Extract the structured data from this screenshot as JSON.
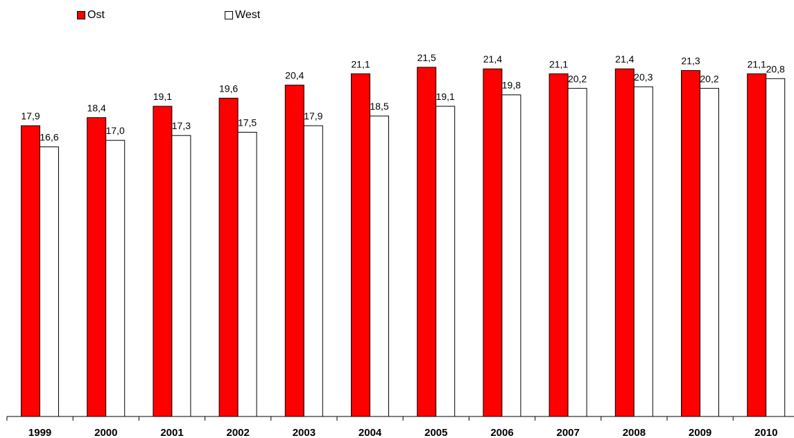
{
  "chart_data": {
    "type": "bar",
    "categories": [
      "1999",
      "2000",
      "2001",
      "2002",
      "2003",
      "2004",
      "2005",
      "2006",
      "2007",
      "2008",
      "2009",
      "2010"
    ],
    "series": [
      {
        "name": "Ost",
        "color": "#ff0000",
        "values": [
          17.9,
          18.4,
          19.1,
          19.6,
          20.4,
          21.1,
          21.5,
          21.4,
          21.1,
          21.4,
          21.3,
          21.1
        ],
        "labels": [
          "17,9",
          "18,4",
          "19,1",
          "19,6",
          "20,4",
          "21,1",
          "21,5",
          "21,4",
          "21,1",
          "21,4",
          "21,3",
          "21,1"
        ]
      },
      {
        "name": "West",
        "color": "#ffffff",
        "values": [
          16.6,
          17.0,
          17.3,
          17.5,
          17.9,
          18.5,
          19.1,
          19.8,
          20.2,
          20.3,
          20.2,
          20.8
        ],
        "labels": [
          "16,6",
          "17,0",
          "17,3",
          "17,5",
          "17,9",
          "18,5",
          "19,1",
          "19,8",
          "20,2",
          "20,3",
          "20,2",
          "20,8"
        ]
      }
    ],
    "ylim": [
      0,
      25
    ],
    "legend": "top-left",
    "grid": false,
    "title": "",
    "xlabel": "",
    "ylabel": ""
  }
}
